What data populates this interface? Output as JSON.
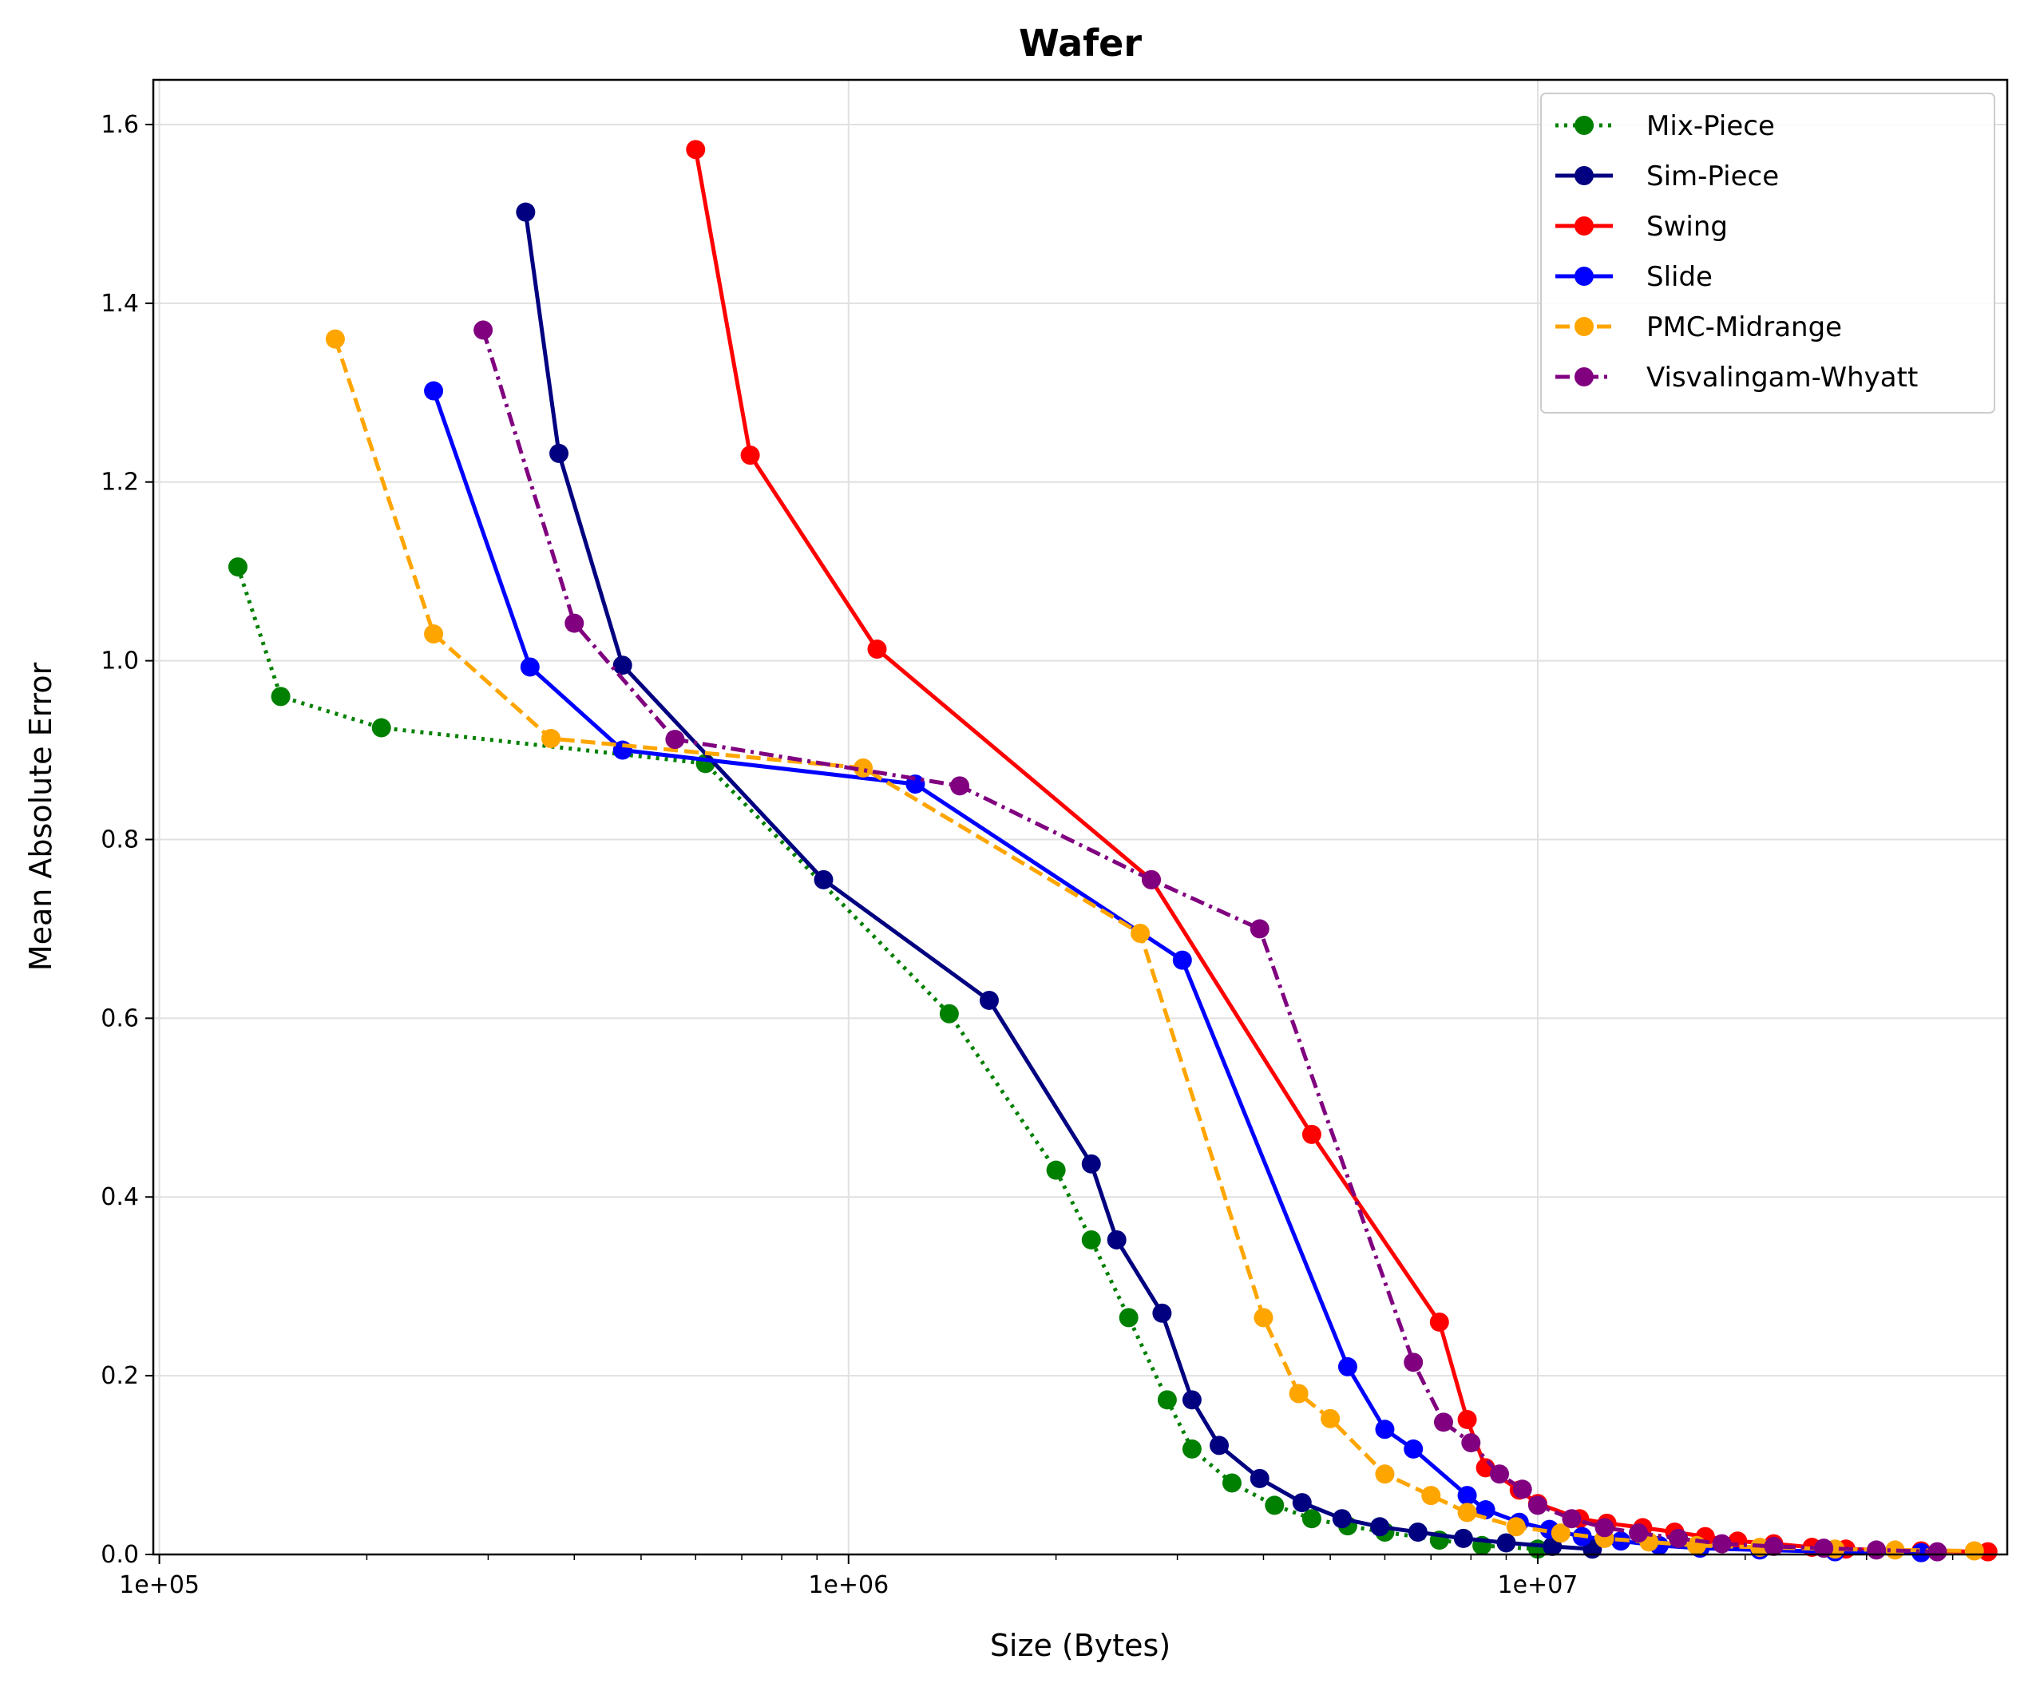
{
  "chart_data": {
    "type": "line",
    "title": "Wafer",
    "xlabel": "Size (Bytes)",
    "ylabel": "Mean Absolute Error",
    "xscale": "log",
    "xlim": [
      98000,
      48000000
    ],
    "ylim": [
      0.0,
      1.65
    ],
    "xticks": [
      100000,
      1000000,
      10000000
    ],
    "xtick_labels": [
      "1e+05",
      "1e+06",
      "1e+07"
    ],
    "yticks": [
      0.0,
      0.2,
      0.4,
      0.6,
      0.8,
      1.0,
      1.2,
      1.4,
      1.6
    ],
    "ytick_labels": [
      "0.0",
      "0.2",
      "0.4",
      "0.6",
      "0.8",
      "1.0",
      "1.2",
      "1.4",
      "1.6"
    ],
    "grid": true,
    "legend_position": "top-right",
    "series": [
      {
        "name": "Mix-Piece",
        "color": "#008000",
        "dash": "dotted",
        "x": [
          130000,
          150000,
          210000,
          620000,
          1400000,
          2000000,
          2250000,
          2550000,
          2900000,
          3150000,
          3600000,
          4150000,
          4700000,
          5300000,
          6000000,
          7200000,
          8300000,
          10000000
        ],
        "y": [
          1.105,
          0.96,
          0.925,
          0.885,
          0.605,
          0.43,
          0.352,
          0.265,
          0.173,
          0.118,
          0.08,
          0.055,
          0.04,
          0.032,
          0.025,
          0.016,
          0.01,
          0.006
        ]
      },
      {
        "name": "Sim-Piece",
        "color": "#000080",
        "dash": "solid",
        "x": [
          340000,
          380000,
          470000,
          920000,
          1600000,
          2250000,
          2450000,
          2850000,
          3150000,
          3450000,
          3950000,
          4550000,
          5200000,
          5900000,
          6700000,
          7800000,
          9000000,
          10500000,
          12000000
        ],
        "y": [
          1.502,
          1.232,
          0.995,
          0.755,
          0.62,
          0.437,
          0.352,
          0.27,
          0.173,
          0.122,
          0.085,
          0.058,
          0.04,
          0.031,
          0.025,
          0.018,
          0.013,
          0.009,
          0.006
        ]
      },
      {
        "name": "Swing",
        "color": "#ff0000",
        "dash": "solid",
        "x": [
          600000,
          720000,
          1100000,
          2750000,
          4700000,
          7200000,
          7900000,
          8400000,
          9400000,
          10000000,
          11500000,
          12600000,
          14200000,
          15800000,
          17500000,
          19500000,
          22000000,
          25000000,
          28000000,
          36000000,
          45000000
        ],
        "y": [
          1.572,
          1.23,
          1.013,
          0.755,
          0.47,
          0.26,
          0.151,
          0.097,
          0.072,
          0.057,
          0.04,
          0.035,
          0.03,
          0.025,
          0.02,
          0.015,
          0.012,
          0.008,
          0.006,
          0.004,
          0.003
        ]
      },
      {
        "name": "Slide",
        "color": "#0000ff",
        "dash": "solid",
        "x": [
          250000,
          345000,
          470000,
          1250000,
          3050000,
          5300000,
          6000000,
          6600000,
          7900000,
          8400000,
          9400000,
          10400000,
          11600000,
          13200000,
          15000000,
          17200000,
          21000000,
          27000000,
          36000000
        ],
        "y": [
          1.302,
          0.993,
          0.9,
          0.862,
          0.665,
          0.21,
          0.14,
          0.118,
          0.066,
          0.05,
          0.036,
          0.028,
          0.02,
          0.015,
          0.01,
          0.007,
          0.005,
          0.003,
          0.002
        ]
      },
      {
        "name": "PMC-Midrange",
        "color": "#ffa500",
        "dash": "dashed",
        "x": [
          180000,
          250000,
          370000,
          1050000,
          2650000,
          4000000,
          4500000,
          5000000,
          6000000,
          7000000,
          7900000,
          9300000,
          10800000,
          12500000,
          14500000,
          17000000,
          21000000,
          27000000,
          33000000,
          43000000
        ],
        "y": [
          1.36,
          1.03,
          0.913,
          0.88,
          0.695,
          0.265,
          0.18,
          0.152,
          0.09,
          0.066,
          0.047,
          0.031,
          0.024,
          0.018,
          0.014,
          0.01,
          0.008,
          0.006,
          0.005,
          0.004
        ]
      },
      {
        "name": "Visvalingam-Whyatt",
        "color": "#800080",
        "dash": "dashdot",
        "x": [
          295000,
          400000,
          560000,
          1450000,
          2750000,
          3950000,
          6600000,
          7300000,
          8000000,
          8800000,
          9500000,
          10000000,
          11200000,
          12500000,
          14000000,
          16000000,
          18500000,
          22000000,
          26000000,
          31000000,
          38000000
        ],
        "y": [
          1.37,
          1.042,
          0.912,
          0.86,
          0.755,
          0.7,
          0.215,
          0.148,
          0.125,
          0.09,
          0.073,
          0.055,
          0.04,
          0.03,
          0.024,
          0.018,
          0.012,
          0.009,
          0.007,
          0.005,
          0.003
        ]
      }
    ]
  }
}
